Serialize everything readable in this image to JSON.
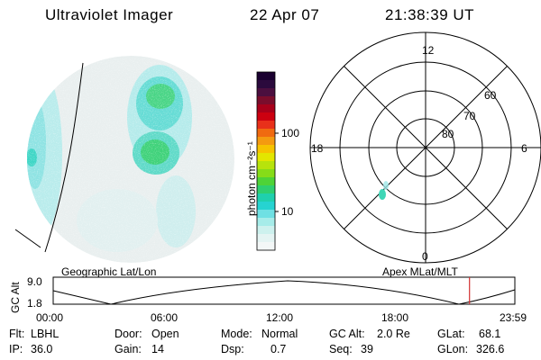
{
  "header": {
    "instrument": "Ultraviolet Imager",
    "date": "22 Apr 07",
    "time": "21:38:39 UT"
  },
  "colorbar": {
    "unit_label": "photon cm⁻²s⁻¹",
    "ticks": [
      "100",
      "10"
    ],
    "colors": [
      "#1a0030",
      "#2b0a3d",
      "#4b0f3f",
      "#7a0d2c",
      "#a8001a",
      "#cc0010",
      "#e8301a",
      "#f06a10",
      "#f49a10",
      "#f6c300",
      "#e3e600",
      "#b7e30c",
      "#86dc18",
      "#4ed337",
      "#2ecf6f",
      "#1fd0ad",
      "#26d3d1",
      "#6fe0e3",
      "#a6ece9",
      "#cdf1ee",
      "#e4f4f3",
      "#f3f7f7"
    ]
  },
  "polar_plot": {
    "mlt_labels": {
      "top": "12",
      "left": "18",
      "right": "6",
      "bottom": "0"
    },
    "lat_labels": [
      "60",
      "70",
      "80"
    ]
  },
  "timeline": {
    "axis_label": "GC Alt",
    "y_ticks": [
      "9.0",
      "1.8"
    ],
    "left_title": "Geographic Lat/Lon",
    "right_title": "Apex  MLat/MLT",
    "x_ticks": [
      "00:00",
      "06:00",
      "12:00",
      "18:00",
      "23:59"
    ],
    "current_time_hours": 21.64,
    "marker_color": "#d23030"
  },
  "footer": {
    "row1": [
      {
        "label": "Flt:",
        "value": "LBHL"
      },
      {
        "label": "Door:",
        "value": "Open"
      },
      {
        "label": "Mode:",
        "value": "Normal"
      },
      {
        "label": "GC Alt:",
        "value": "2.0 Re"
      },
      {
        "label": "GLat:",
        "value": "68.1"
      }
    ],
    "row2": [
      {
        "label": "IP:",
        "value": "36.0"
      },
      {
        "label": "Gain:",
        "value": "14"
      },
      {
        "label": "Dsp:",
        "value": "0.7"
      },
      {
        "label": "Seq:",
        "value": "39"
      },
      {
        "label": "GLon:",
        "value": "326.6"
      }
    ]
  }
}
